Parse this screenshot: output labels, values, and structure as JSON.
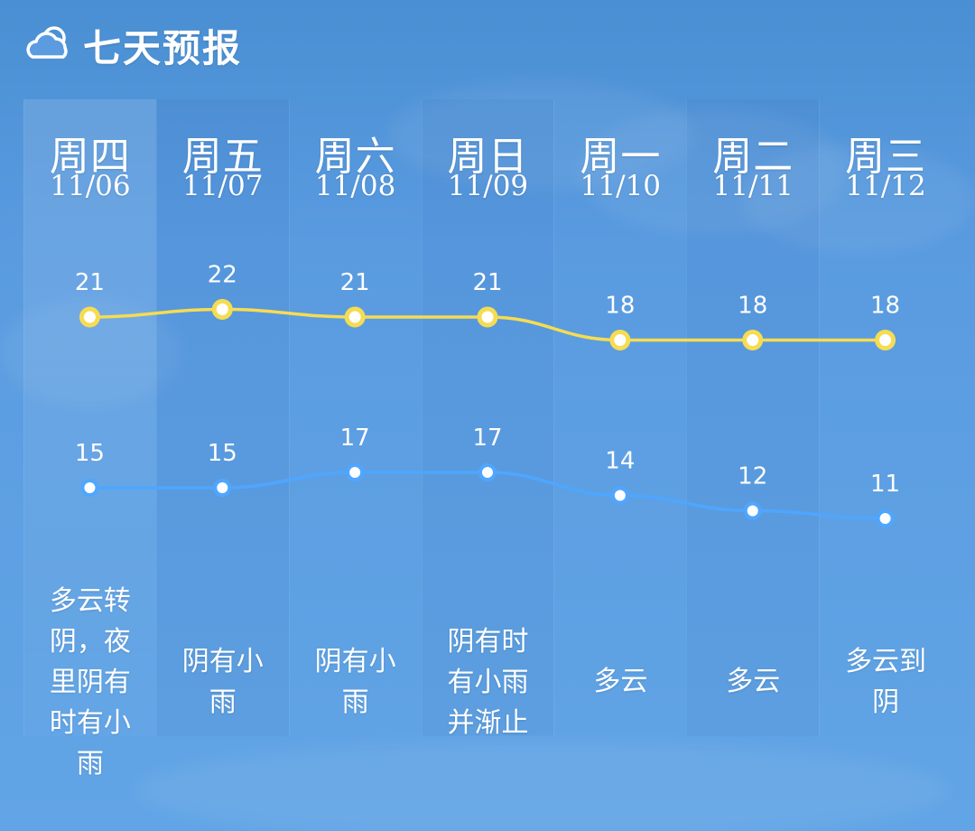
{
  "header": {
    "icon": "partly-cloudy-icon",
    "title": "七天预报"
  },
  "days": [
    {
      "day": "周四",
      "date": "11/06",
      "desc_lines": [
        "多云转",
        "阴，夜",
        "里阴有",
        "时有小",
        "雨"
      ]
    },
    {
      "day": "周五",
      "date": "11/07",
      "desc_lines": [
        "阴有小",
        "雨"
      ]
    },
    {
      "day": "周六",
      "date": "11/08",
      "desc_lines": [
        "阴有小",
        "雨"
      ]
    },
    {
      "day": "周日",
      "date": "11/09",
      "desc_lines": [
        "阴有时",
        "有小雨",
        "并渐止"
      ]
    },
    {
      "day": "周一",
      "date": "11/10",
      "desc_lines": [
        "多云"
      ]
    },
    {
      "day": "周二",
      "date": "11/11",
      "desc_lines": [
        "多云"
      ]
    },
    {
      "day": "周三",
      "date": "11/12",
      "desc_lines": [
        "多云到",
        "阴"
      ]
    }
  ],
  "colors": {
    "high": "#f5dc52",
    "low": "#4fa6ff",
    "dot_fill": "#ffffff"
  },
  "chart_data": {
    "type": "line",
    "categories": [
      "周四",
      "周五",
      "周六",
      "周日",
      "周一",
      "周二",
      "周三"
    ],
    "series": [
      {
        "values": [
          21,
          22,
          21,
          21,
          18,
          18,
          18
        ]
      },
      {
        "values": [
          15,
          15,
          17,
          17,
          14,
          12,
          11
        ]
      }
    ]
  }
}
